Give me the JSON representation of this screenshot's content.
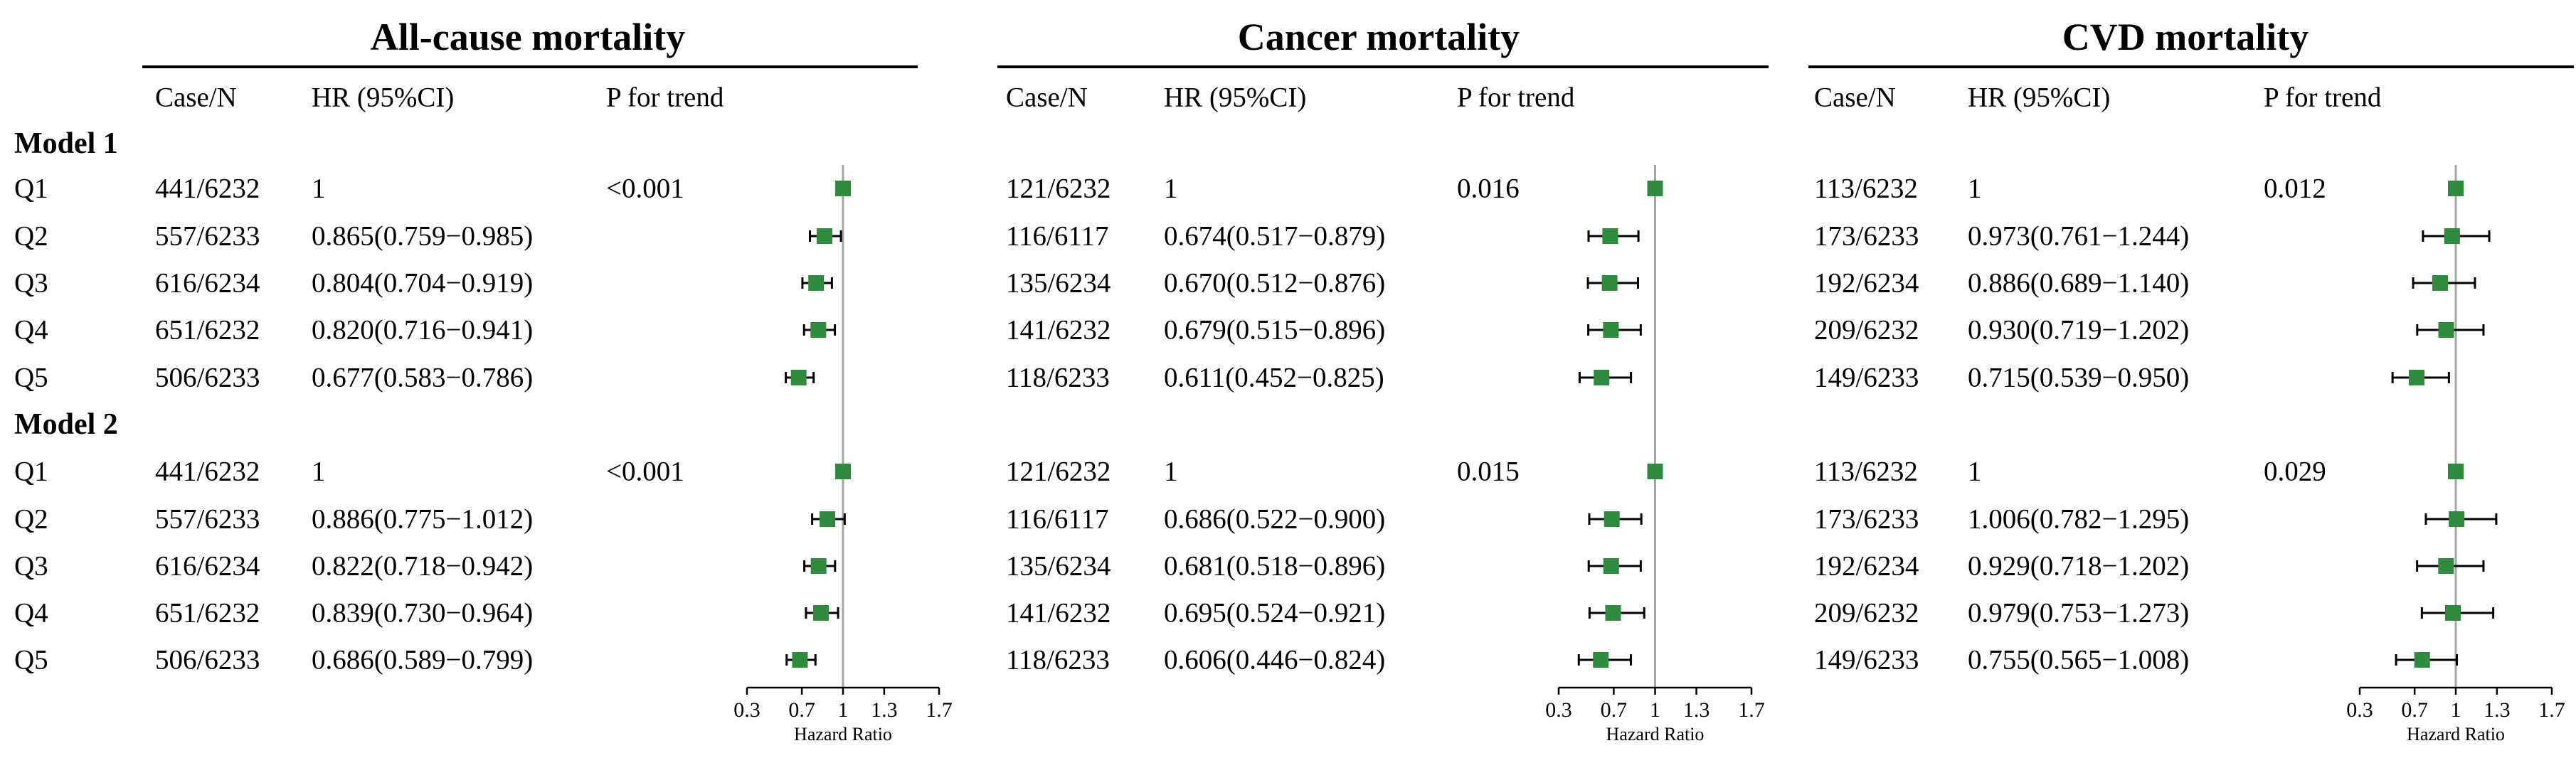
{
  "colors": {
    "marker": "#2e8b3e",
    "refline": "#a6a6a6",
    "text": "#000000"
  },
  "header": {
    "case_n": "Case/N",
    "hr": "HR (95%CI)",
    "p_trend": "P for trend"
  },
  "models": [
    {
      "label": "Model 1"
    },
    {
      "label": "Model 2"
    }
  ],
  "axis": {
    "ticks": [
      "0.3",
      "0.7",
      "1",
      "1.3",
      "1.7"
    ],
    "label": "Hazard Ratio"
  },
  "panels": [
    {
      "title": "All-cause mortality",
      "models": [
        {
          "p_trend": "<0.001",
          "rows": [
            {
              "q": "Q1",
              "case_n": "441/6232",
              "hr_text": "1"
            },
            {
              "q": "Q2",
              "case_n": "557/6233",
              "hr_text": "0.865(0.759−0.985)"
            },
            {
              "q": "Q3",
              "case_n": "616/6234",
              "hr_text": "0.804(0.704−0.919)"
            },
            {
              "q": "Q4",
              "case_n": "651/6232",
              "hr_text": "0.820(0.716−0.941)"
            },
            {
              "q": "Q5",
              "case_n": "506/6233",
              "hr_text": "0.677(0.583−0.786)"
            }
          ]
        },
        {
          "p_trend": "<0.001",
          "rows": [
            {
              "q": "Q1",
              "case_n": "441/6232",
              "hr_text": "1"
            },
            {
              "q": "Q2",
              "case_n": "557/6233",
              "hr_text": "0.886(0.775−1.012)"
            },
            {
              "q": "Q3",
              "case_n": "616/6234",
              "hr_text": "0.822(0.718−0.942)"
            },
            {
              "q": "Q4",
              "case_n": "651/6232",
              "hr_text": "0.839(0.730−0.964)"
            },
            {
              "q": "Q5",
              "case_n": "506/6233",
              "hr_text": "0.686(0.589−0.799)"
            }
          ]
        }
      ]
    },
    {
      "title": "Cancer mortality",
      "models": [
        {
          "p_trend": "0.016",
          "rows": [
            {
              "q": "Q1",
              "case_n": "121/6232",
              "hr_text": "1"
            },
            {
              "q": "Q2",
              "case_n": "116/6117",
              "hr_text": "0.674(0.517−0.879)"
            },
            {
              "q": "Q3",
              "case_n": "135/6234",
              "hr_text": "0.670(0.512−0.876)"
            },
            {
              "q": "Q4",
              "case_n": "141/6232",
              "hr_text": "0.679(0.515−0.896)"
            },
            {
              "q": "Q5",
              "case_n": "118/6233",
              "hr_text": "0.611(0.452−0.825)"
            }
          ]
        },
        {
          "p_trend": "0.015",
          "rows": [
            {
              "q": "Q1",
              "case_n": "121/6232",
              "hr_text": "1"
            },
            {
              "q": "Q2",
              "case_n": "116/6117",
              "hr_text": "0.686(0.522−0.900)"
            },
            {
              "q": "Q3",
              "case_n": "135/6234",
              "hr_text": "0.681(0.518−0.896)"
            },
            {
              "q": "Q4",
              "case_n": "141/6232",
              "hr_text": "0.695(0.524−0.921)"
            },
            {
              "q": "Q5",
              "case_n": "118/6233",
              "hr_text": "0.606(0.446−0.824)"
            }
          ]
        }
      ]
    },
    {
      "title": "CVD mortality",
      "models": [
        {
          "p_trend": "0.012",
          "rows": [
            {
              "q": "Q1",
              "case_n": "113/6232",
              "hr_text": "1"
            },
            {
              "q": "Q2",
              "case_n": "173/6233",
              "hr_text": "0.973(0.761−1.244)"
            },
            {
              "q": "Q3",
              "case_n": "192/6234",
              "hr_text": "0.886(0.689−1.140)"
            },
            {
              "q": "Q4",
              "case_n": "209/6232",
              "hr_text": "0.930(0.719−1.202)"
            },
            {
              "q": "Q5",
              "case_n": "149/6233",
              "hr_text": "0.715(0.539−0.950)"
            }
          ]
        },
        {
          "p_trend": "0.029",
          "rows": [
            {
              "q": "Q1",
              "case_n": "113/6232",
              "hr_text": "1"
            },
            {
              "q": "Q2",
              "case_n": "173/6233",
              "hr_text": "1.006(0.782−1.295)"
            },
            {
              "q": "Q3",
              "case_n": "192/6234",
              "hr_text": "0.929(0.718−1.202)"
            },
            {
              "q": "Q4",
              "case_n": "209/6232",
              "hr_text": "0.979(0.753−1.273)"
            },
            {
              "q": "Q5",
              "case_n": "149/6233",
              "hr_text": "0.755(0.565−1.008)"
            }
          ]
        }
      ]
    }
  ],
  "chart_data": [
    {
      "type": "forest",
      "title": "All-cause mortality",
      "xlabel": "Hazard Ratio",
      "xlim": [
        0.3,
        1.7
      ],
      "reference": 1,
      "series": [
        {
          "name": "Model 1",
          "categories": [
            "Q1",
            "Q2",
            "Q3",
            "Q4",
            "Q5"
          ],
          "hr": [
            1,
            0.865,
            0.804,
            0.82,
            0.677
          ],
          "lower": [
            1,
            0.759,
            0.704,
            0.716,
            0.583
          ],
          "upper": [
            1,
            0.985,
            0.919,
            0.941,
            0.786
          ]
        },
        {
          "name": "Model 2",
          "categories": [
            "Q1",
            "Q2",
            "Q3",
            "Q4",
            "Q5"
          ],
          "hr": [
            1,
            0.886,
            0.822,
            0.839,
            0.686
          ],
          "lower": [
            1,
            0.775,
            0.718,
            0.73,
            0.589
          ],
          "upper": [
            1,
            1.012,
            0.942,
            0.964,
            0.799
          ]
        }
      ]
    },
    {
      "type": "forest",
      "title": "Cancer mortality",
      "xlabel": "Hazard Ratio",
      "xlim": [
        0.3,
        1.7
      ],
      "reference": 1,
      "series": [
        {
          "name": "Model 1",
          "categories": [
            "Q1",
            "Q2",
            "Q3",
            "Q4",
            "Q5"
          ],
          "hr": [
            1,
            0.674,
            0.67,
            0.679,
            0.611
          ],
          "lower": [
            1,
            0.517,
            0.512,
            0.515,
            0.452
          ],
          "upper": [
            1,
            0.879,
            0.876,
            0.896,
            0.825
          ]
        },
        {
          "name": "Model 2",
          "categories": [
            "Q1",
            "Q2",
            "Q3",
            "Q4",
            "Q5"
          ],
          "hr": [
            1,
            0.686,
            0.681,
            0.695,
            0.606
          ],
          "lower": [
            1,
            0.522,
            0.518,
            0.524,
            0.446
          ],
          "upper": [
            1,
            0.9,
            0.896,
            0.921,
            0.824
          ]
        }
      ]
    },
    {
      "type": "forest",
      "title": "CVD mortality",
      "xlabel": "Hazard Ratio",
      "xlim": [
        0.3,
        1.7
      ],
      "reference": 1,
      "series": [
        {
          "name": "Model 1",
          "categories": [
            "Q1",
            "Q2",
            "Q3",
            "Q4",
            "Q5"
          ],
          "hr": [
            1,
            0.973,
            0.886,
            0.93,
            0.715
          ],
          "lower": [
            1,
            0.761,
            0.689,
            0.719,
            0.539
          ],
          "upper": [
            1,
            1.244,
            1.14,
            1.202,
            0.95
          ]
        },
        {
          "name": "Model 2",
          "categories": [
            "Q1",
            "Q2",
            "Q3",
            "Q4",
            "Q5"
          ],
          "hr": [
            1,
            1.006,
            0.929,
            0.979,
            0.755
          ],
          "lower": [
            1,
            0.782,
            0.718,
            0.753,
            0.565
          ],
          "upper": [
            1,
            1.295,
            1.202,
            1.273,
            1.008
          ]
        }
      ]
    }
  ]
}
